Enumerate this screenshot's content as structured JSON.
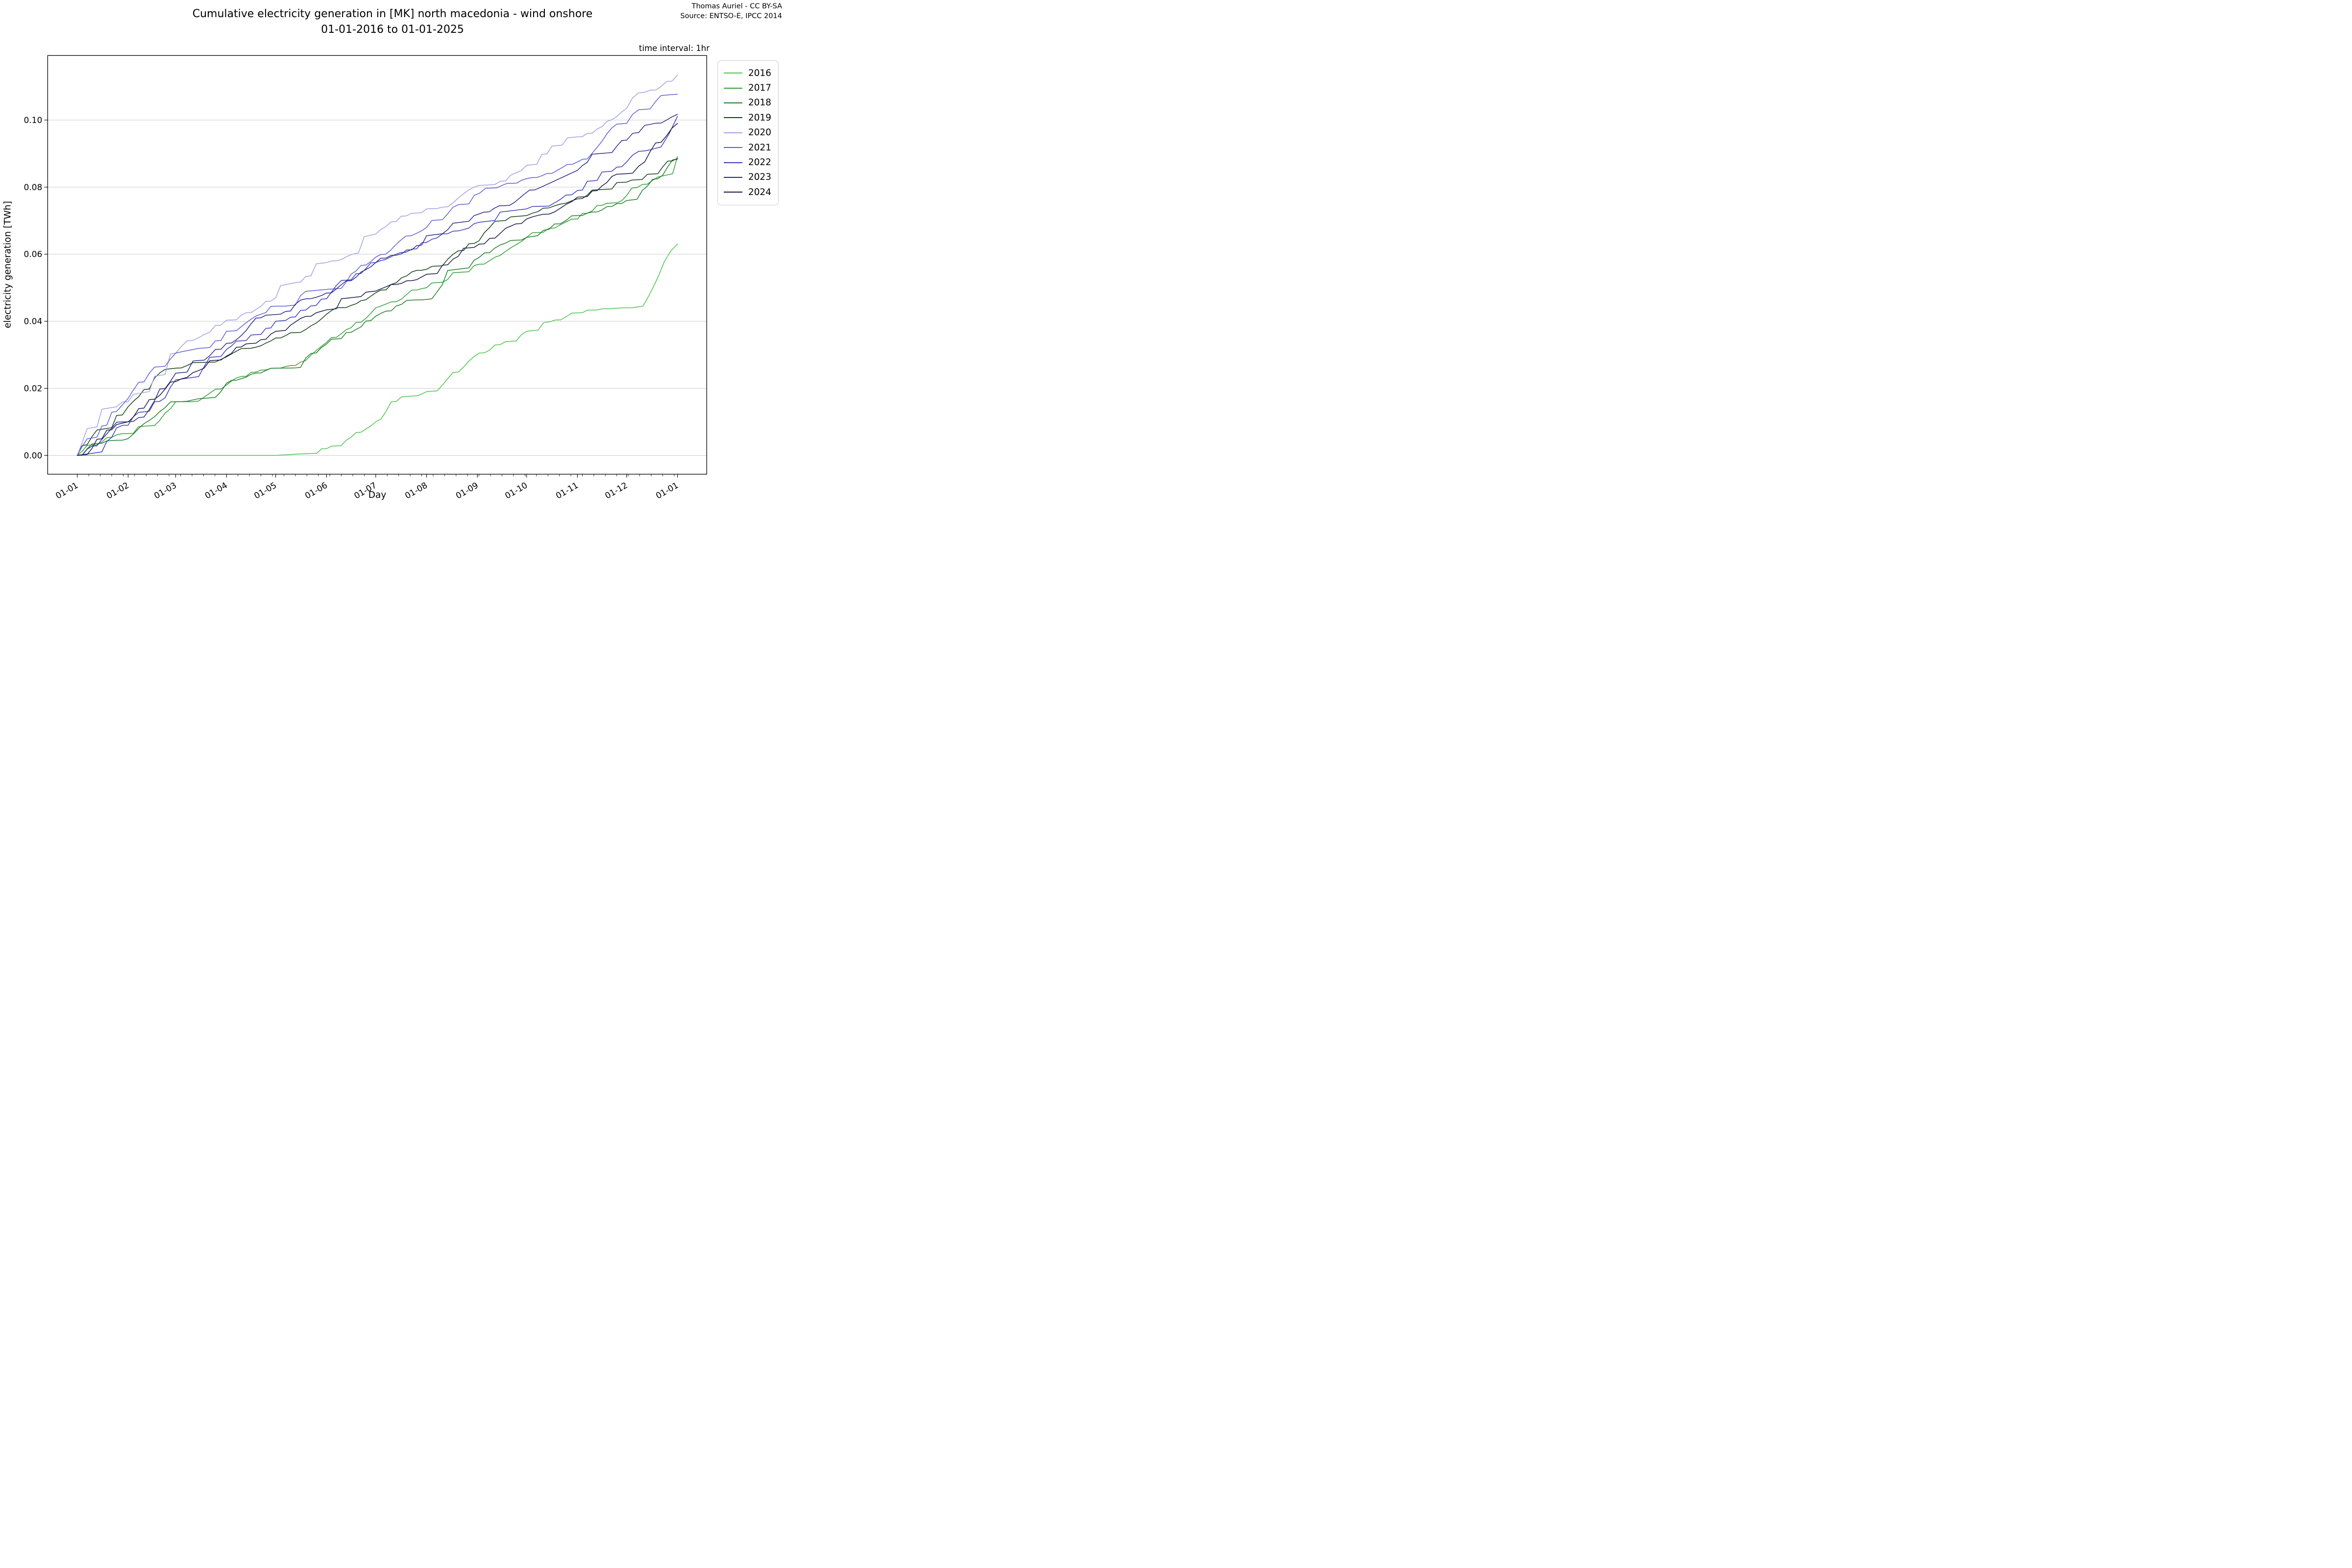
{
  "title": {
    "line1": "Cumulative electricity generation in [MK] north macedonia - wind onshore",
    "line2": "01-01-2016 to 01-01-2025"
  },
  "attribution": {
    "line1": "Thomas Auriel - CC BY-SA",
    "line2": "Source: ENTSO-E, IPCC 2014"
  },
  "note": "time interval: 1hr",
  "axes": {
    "x_label": "Day",
    "y_label": "electricity generation [TWh]",
    "y_ticks": [
      {
        "label": "0.00",
        "value": 0.0
      },
      {
        "label": "0.02",
        "value": 0.02
      },
      {
        "label": "0.04",
        "value": 0.04
      },
      {
        "label": "0.06",
        "value": 0.06
      },
      {
        "label": "0.08",
        "value": 0.08
      },
      {
        "label": "0.10",
        "value": 0.1
      }
    ],
    "x_ticks": [
      {
        "label": "01-01",
        "day": 0
      },
      {
        "label": "01-02",
        "day": 31
      },
      {
        "label": "01-03",
        "day": 60
      },
      {
        "label": "01-04",
        "day": 91
      },
      {
        "label": "01-05",
        "day": 121
      },
      {
        "label": "01-06",
        "day": 152
      },
      {
        "label": "01-07",
        "day": 182
      },
      {
        "label": "01-08",
        "day": 213
      },
      {
        "label": "01-09",
        "day": 244
      },
      {
        "label": "01-10",
        "day": 274
      },
      {
        "label": "01-11",
        "day": 305
      },
      {
        "label": "01-12",
        "day": 335
      },
      {
        "label": "01-01",
        "day": 366
      }
    ],
    "x_minor_tick_every_days": 7,
    "grid": "horizontal-only"
  },
  "legend": {
    "entries": [
      {
        "label": "2016",
        "color": "#4cc44c"
      },
      {
        "label": "2017",
        "color": "#2f9e38"
      },
      {
        "label": "2018",
        "color": "#1e7e26"
      },
      {
        "label": "2019",
        "color": "#133f13"
      },
      {
        "label": "2020",
        "color": "#a0a0e4"
      },
      {
        "label": "2021",
        "color": "#5e5ed2"
      },
      {
        "label": "2022",
        "color": "#3a3ab8"
      },
      {
        "label": "2023",
        "color": "#26268c"
      },
      {
        "label": "2024",
        "color": "#16164a"
      }
    ]
  },
  "chart_data": {
    "type": "line",
    "title": "Cumulative electricity generation in [MK] north macedonia - wind onshore 01-01-2016 to 01-01-2025",
    "xlabel": "Day",
    "ylabel": "electricity generation [TWh]",
    "x_unit": "day-of-year",
    "x_range_days": [
      0,
      366
    ],
    "ylim": [
      -0.0057,
      0.1191
    ],
    "legend_position": "outside-right",
    "series": [
      {
        "name": "2016",
        "color": "#4cc44c",
        "points": [
          [
            0,
            0
          ],
          [
            60,
            0
          ],
          [
            121,
            0
          ],
          [
            140,
            0.0005
          ],
          [
            152,
            0.002
          ],
          [
            182,
            0.01
          ],
          [
            204,
            0.0177
          ],
          [
            213,
            0.019
          ],
          [
            242,
            0.0295
          ],
          [
            245,
            0.0305
          ],
          [
            274,
            0.037
          ],
          [
            288,
            0.0398
          ],
          [
            305,
            0.0425
          ],
          [
            320,
            0.0437
          ],
          [
            335,
            0.044
          ],
          [
            345,
            0.0445
          ],
          [
            349,
            0.048
          ],
          [
            354,
            0.053
          ],
          [
            358,
            0.0578
          ],
          [
            362,
            0.061
          ],
          [
            366,
            0.063
          ]
        ]
      },
      {
        "name": "2017",
        "color": "#2f9e38",
        "points": [
          [
            0,
            0
          ],
          [
            24,
            0.0061
          ],
          [
            31,
            0.0065
          ],
          [
            60,
            0.016
          ],
          [
            74,
            0.0162
          ],
          [
            91,
            0.021
          ],
          [
            121,
            0.026
          ],
          [
            133,
            0.0268
          ],
          [
            152,
            0.0337
          ],
          [
            182,
            0.044
          ],
          [
            204,
            0.0493
          ],
          [
            213,
            0.05
          ],
          [
            242,
            0.0566
          ],
          [
            245,
            0.057
          ],
          [
            274,
            0.065
          ],
          [
            291,
            0.0678
          ],
          [
            305,
            0.0705
          ],
          [
            335,
            0.0775
          ],
          [
            354,
            0.083
          ],
          [
            366,
            0.0891
          ]
        ]
      },
      {
        "name": "2018",
        "color": "#1e7e26",
        "points": [
          [
            0,
            0
          ],
          [
            24,
            0.0045
          ],
          [
            31,
            0.005
          ],
          [
            60,
            0.016
          ],
          [
            74,
            0.0169
          ],
          [
            91,
            0.0215
          ],
          [
            121,
            0.026
          ],
          [
            133,
            0.0261
          ],
          [
            152,
            0.0332
          ],
          [
            182,
            0.0415
          ],
          [
            204,
            0.0463
          ],
          [
            213,
            0.0465
          ],
          [
            242,
            0.0582
          ],
          [
            245,
            0.059
          ],
          [
            274,
            0.065
          ],
          [
            291,
            0.069
          ],
          [
            305,
            0.0715
          ],
          [
            335,
            0.076
          ],
          [
            354,
            0.0825
          ],
          [
            366,
            0.0883
          ]
        ]
      },
      {
        "name": "2019",
        "color": "#133f13",
        "points": [
          [
            0,
            0
          ],
          [
            24,
            0.0119
          ],
          [
            31,
            0.0145
          ],
          [
            60,
            0.026
          ],
          [
            74,
            0.0277
          ],
          [
            91,
            0.0294
          ],
          [
            121,
            0.035
          ],
          [
            133,
            0.0366
          ],
          [
            152,
            0.0421
          ],
          [
            182,
            0.0485
          ],
          [
            204,
            0.0547
          ],
          [
            213,
            0.0555
          ],
          [
            242,
            0.0632
          ],
          [
            245,
            0.064
          ],
          [
            274,
            0.0715
          ],
          [
            291,
            0.0744
          ],
          [
            305,
            0.0765
          ],
          [
            335,
            0.0815
          ],
          [
            354,
            0.084
          ],
          [
            366,
            0.0886
          ]
        ]
      },
      {
        "name": "2020",
        "color": "#a0a0e4",
        "points": [
          [
            0,
            0
          ],
          [
            24,
            0.0145
          ],
          [
            31,
            0.016
          ],
          [
            60,
            0.0305
          ],
          [
            74,
            0.0351
          ],
          [
            91,
            0.0403
          ],
          [
            121,
            0.047
          ],
          [
            133,
            0.0515
          ],
          [
            152,
            0.0575
          ],
          [
            168,
            0.06
          ],
          [
            182,
            0.066
          ],
          [
            213,
            0.0735
          ],
          [
            242,
            0.08
          ],
          [
            245,
            0.0805
          ],
          [
            274,
            0.0865
          ],
          [
            305,
            0.095
          ],
          [
            335,
            0.1035
          ],
          [
            346,
            0.1083
          ],
          [
            356,
            0.11
          ],
          [
            366,
            0.1134
          ]
        ]
      },
      {
        "name": "2021",
        "color": "#5e5ed2",
        "points": [
          [
            0,
            0
          ],
          [
            24,
            0.0131
          ],
          [
            31,
            0.017
          ],
          [
            60,
            0.0305
          ],
          [
            74,
            0.0319
          ],
          [
            91,
            0.037
          ],
          [
            121,
            0.0445
          ],
          [
            133,
            0.0448
          ],
          [
            152,
            0.0495
          ],
          [
            188,
            0.06
          ],
          [
            194,
            0.0627
          ],
          [
            213,
            0.068
          ],
          [
            242,
            0.0775
          ],
          [
            256,
            0.0798
          ],
          [
            274,
            0.0825
          ],
          [
            305,
            0.0875
          ],
          [
            335,
            0.099
          ],
          [
            346,
            0.1032
          ],
          [
            366,
            0.1077
          ]
        ]
      },
      {
        "name": "2022",
        "color": "#3a3ab8",
        "points": [
          [
            0,
            0
          ],
          [
            24,
            0.0082
          ],
          [
            31,
            0.009
          ],
          [
            60,
            0.0225
          ],
          [
            74,
            0.0235
          ],
          [
            91,
            0.0316
          ],
          [
            121,
            0.04
          ],
          [
            133,
            0.0413
          ],
          [
            152,
            0.0467
          ],
          [
            182,
            0.0575
          ],
          [
            200,
            0.0605
          ],
          [
            204,
            0.0615
          ],
          [
            213,
            0.0635
          ],
          [
            242,
            0.0691
          ],
          [
            245,
            0.0695
          ],
          [
            274,
            0.0735
          ],
          [
            291,
            0.0753
          ],
          [
            305,
            0.079
          ],
          [
            335,
            0.0875
          ],
          [
            346,
            0.0908
          ],
          [
            356,
            0.092
          ],
          [
            361,
            0.096
          ],
          [
            366,
            0.1011
          ]
        ]
      },
      {
        "name": "2023",
        "color": "#26268c",
        "points": [
          [
            0,
            0
          ],
          [
            24,
            0.0099
          ],
          [
            31,
            0.01
          ],
          [
            60,
            0.0245
          ],
          [
            74,
            0.0283
          ],
          [
            91,
            0.0334
          ],
          [
            121,
            0.042
          ],
          [
            133,
            0.0451
          ],
          [
            152,
            0.0484
          ],
          [
            182,
            0.0575
          ],
          [
            204,
            0.0613
          ],
          [
            213,
            0.0655
          ],
          [
            242,
            0.0715
          ],
          [
            245,
            0.072
          ],
          [
            282,
            0.0798
          ],
          [
            305,
            0.085
          ],
          [
            335,
            0.094
          ],
          [
            346,
            0.0984
          ],
          [
            366,
            0.1017
          ]
        ]
      },
      {
        "name": "2024",
        "color": "#16164a",
        "points": [
          [
            0,
            0
          ],
          [
            24,
            0.0092
          ],
          [
            31,
            0.01
          ],
          [
            60,
            0.022
          ],
          [
            74,
            0.0253
          ],
          [
            91,
            0.0296
          ],
          [
            121,
            0.037
          ],
          [
            133,
            0.0398
          ],
          [
            152,
            0.0434
          ],
          [
            182,
            0.049
          ],
          [
            204,
            0.0521
          ],
          [
            213,
            0.054
          ],
          [
            242,
            0.062
          ],
          [
            245,
            0.063
          ],
          [
            274,
            0.0705
          ],
          [
            291,
            0.0726
          ],
          [
            305,
            0.077
          ],
          [
            335,
            0.084
          ],
          [
            346,
            0.0875
          ],
          [
            366,
            0.099
          ]
        ]
      }
    ]
  }
}
